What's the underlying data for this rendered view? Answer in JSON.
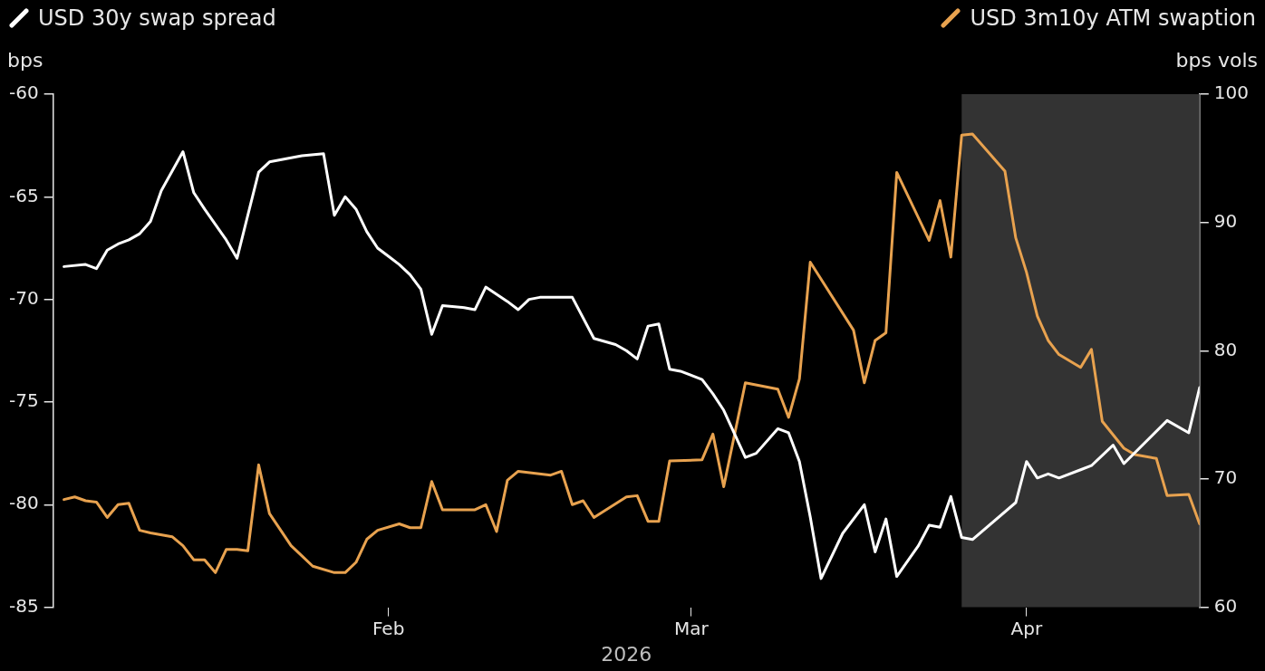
{
  "chart_data": {
    "type": "line",
    "xlabel": "2026",
    "ylabel": "bps",
    "y2label": "bps vols",
    "legend": "top",
    "xlim": [
      "2026-01-01",
      "2026-04-17"
    ],
    "xticks": [
      {
        "value": "2026-02-01",
        "label": "Feb"
      },
      {
        "value": "2026-03-01",
        "label": "Mar"
      },
      {
        "value": "2026-04-01",
        "label": "Apr"
      }
    ],
    "ylim": [
      -85,
      -60
    ],
    "yticks": [
      -85,
      -80,
      -75,
      -70,
      -65,
      -60
    ],
    "y2lim": [
      60,
      100
    ],
    "y2ticks": [
      60,
      70,
      80,
      90,
      100
    ],
    "bands": [
      {
        "axis": "x",
        "from": "2026-03-26",
        "to": "2026-04-17",
        "color": "#333333"
      }
    ],
    "series": [
      {
        "name": "USD 30y swap spread",
        "color": "#ffffff",
        "x": [
          "2026-01-02",
          "2026-01-04",
          "2026-01-05",
          "2026-01-06",
          "2026-01-07",
          "2026-01-08",
          "2026-01-09",
          "2026-01-10",
          "2026-01-11",
          "2026-01-13",
          "2026-01-14",
          "2026-01-15",
          "2026-01-17",
          "2026-01-18",
          "2026-01-19",
          "2026-01-20",
          "2026-01-21",
          "2026-01-22",
          "2026-01-24",
          "2026-01-26",
          "2026-01-27",
          "2026-01-28",
          "2026-01-29",
          "2026-01-30",
          "2026-01-31",
          "2026-02-01",
          "2026-02-02",
          "2026-02-03",
          "2026-02-04",
          "2026-02-05",
          "2026-02-06",
          "2026-02-08",
          "2026-02-09",
          "2026-02-10",
          "2026-02-12",
          "2026-02-13",
          "2026-02-14",
          "2026-02-15",
          "2026-02-18",
          "2026-02-20",
          "2026-02-22",
          "2026-02-23",
          "2026-02-24",
          "2026-02-25",
          "2026-02-26",
          "2026-02-27",
          "2026-02-28",
          "2026-03-02",
          "2026-03-03",
          "2026-03-04",
          "2026-03-06",
          "2026-03-07",
          "2026-03-09",
          "2026-03-10",
          "2026-03-11",
          "2026-03-12",
          "2026-03-13",
          "2026-03-15",
          "2026-03-17",
          "2026-03-18",
          "2026-03-19",
          "2026-03-20",
          "2026-03-22",
          "2026-03-23",
          "2026-03-24",
          "2026-03-25",
          "2026-03-26",
          "2026-03-27",
          "2026-03-31",
          "2026-04-01",
          "2026-04-02",
          "2026-04-03",
          "2026-04-04",
          "2026-04-06",
          "2026-04-07",
          "2026-04-09",
          "2026-04-10",
          "2026-04-14",
          "2026-04-16",
          "2026-04-17"
        ],
        "values": [
          -68.4,
          -68.3,
          -68.5,
          -67.6,
          -67.3,
          -67.1,
          -66.8,
          -66.2,
          -64.7,
          -62.8,
          -64.8,
          -65.6,
          -67.1,
          -68.0,
          -65.9,
          -63.8,
          -63.3,
          -63.2,
          -63.0,
          -62.9,
          -65.9,
          -65.0,
          -65.6,
          -66.7,
          -67.5,
          -67.9,
          -68.3,
          -68.8,
          -69.5,
          -71.7,
          -70.3,
          -70.4,
          -70.5,
          -69.4,
          -70.1,
          -70.5,
          -70.0,
          -69.9,
          -69.9,
          -71.9,
          -72.2,
          -72.5,
          -72.9,
          -71.3,
          -71.2,
          -73.4,
          -73.5,
          -73.9,
          -74.6,
          -75.4,
          -77.7,
          -77.5,
          -76.3,
          -76.5,
          -77.9,
          -80.6,
          -83.6,
          -81.4,
          -80.0,
          -82.3,
          -80.7,
          -83.5,
          -82.0,
          -81.0,
          -81.1,
          -79.6,
          -81.6,
          -81.7,
          -79.9,
          -77.9,
          -78.7,
          -78.5,
          -78.7,
          -78.3,
          -78.1,
          -77.1,
          -78.0,
          -75.9,
          -76.5,
          -74.3
        ]
      },
      {
        "name": "USD 3m10y ATM swaption",
        "color": "#e8a24f",
        "axis": "y2",
        "x": [
          "2026-01-02",
          "2026-01-03",
          "2026-01-04",
          "2026-01-05",
          "2026-01-06",
          "2026-01-07",
          "2026-01-08",
          "2026-01-09",
          "2026-01-10",
          "2026-01-12",
          "2026-01-13",
          "2026-01-14",
          "2026-01-15",
          "2026-01-16",
          "2026-01-17",
          "2026-01-18",
          "2026-01-19",
          "2026-01-20",
          "2026-01-21",
          "2026-01-23",
          "2026-01-24",
          "2026-01-25",
          "2026-01-27",
          "2026-01-28",
          "2026-01-29",
          "2026-01-30",
          "2026-01-31",
          "2026-02-02",
          "2026-02-03",
          "2026-02-04",
          "2026-02-05",
          "2026-02-06",
          "2026-02-09",
          "2026-02-10",
          "2026-02-11",
          "2026-02-12",
          "2026-02-13",
          "2026-02-16",
          "2026-02-17",
          "2026-02-18",
          "2026-02-19",
          "2026-02-20",
          "2026-02-23",
          "2026-02-24",
          "2026-02-25",
          "2026-02-26",
          "2026-02-27",
          "2026-03-02",
          "2026-03-03",
          "2026-03-04",
          "2026-03-06",
          "2026-03-09",
          "2026-03-10",
          "2026-03-11",
          "2026-03-12",
          "2026-03-16",
          "2026-03-17",
          "2026-03-18",
          "2026-03-19",
          "2026-03-20",
          "2026-03-23",
          "2026-03-24",
          "2026-03-25",
          "2026-03-26",
          "2026-03-27",
          "2026-03-30",
          "2026-03-31",
          "2026-04-01",
          "2026-04-02",
          "2026-04-03",
          "2026-04-04",
          "2026-04-06",
          "2026-04-07",
          "2026-04-08",
          "2026-04-10",
          "2026-04-11",
          "2026-04-13",
          "2026-04-14",
          "2026-04-16",
          "2026-04-17"
        ],
        "values": [
          68.4,
          68.6,
          68.3,
          68.2,
          67.0,
          68.0,
          68.1,
          66.0,
          65.8,
          65.5,
          64.8,
          63.7,
          63.7,
          62.7,
          64.5,
          64.5,
          64.4,
          71.1,
          67.3,
          64.8,
          64.0,
          63.2,
          62.7,
          62.7,
          63.5,
          65.3,
          66.0,
          66.5,
          66.2,
          66.2,
          69.8,
          67.6,
          67.6,
          68.0,
          65.9,
          69.9,
          70.6,
          70.3,
          70.6,
          68.0,
          68.3,
          67.0,
          68.6,
          68.7,
          66.7,
          66.7,
          71.4,
          71.5,
          73.5,
          69.4,
          77.5,
          77.0,
          74.8,
          77.8,
          86.9,
          81.6,
          77.5,
          80.8,
          81.4,
          93.9,
          88.6,
          91.7,
          87.3,
          96.8,
          96.9,
          94.0,
          88.8,
          86.1,
          82.7,
          80.8,
          79.7,
          78.7,
          80.1,
          74.5,
          72.4,
          71.9,
          71.6,
          68.7,
          68.8,
          66.5
        ]
      }
    ]
  }
}
